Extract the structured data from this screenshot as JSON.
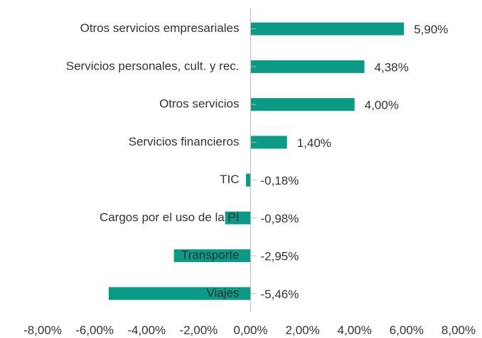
{
  "chart_data": {
    "type": "barh",
    "categories": [
      "Otros servicios empresariales",
      "Servicios personales, cult. y rec.",
      "Otros servicios",
      "Servicios financieros",
      "TIC",
      "Cargos por el uso de la PI",
      "Transporte",
      "Viajes"
    ],
    "values": [
      5.9,
      4.38,
      4.0,
      1.4,
      -0.18,
      -0.98,
      -2.95,
      -5.46
    ],
    "value_labels": [
      "5,90%",
      "4,38%",
      "4,00%",
      "1,40%",
      "-0,18%",
      "-0,98%",
      "-2,95%",
      "-5,46%"
    ],
    "color": "#0b9a86",
    "xlim": [
      -8,
      8
    ],
    "xticks": [
      {
        "value": -8,
        "label": "-8,00%"
      },
      {
        "value": -6,
        "label": "-6,00%"
      },
      {
        "value": -4,
        "label": "-4,00%"
      },
      {
        "value": -2,
        "label": "-2,00%"
      },
      {
        "value": 0,
        "label": "0,00%"
      },
      {
        "value": 2,
        "label": "2,00%"
      },
      {
        "value": 4,
        "label": "4,00%"
      },
      {
        "value": 6,
        "label": "6,00%"
      },
      {
        "value": 8,
        "label": "8,00%"
      }
    ],
    "grid": false
  }
}
